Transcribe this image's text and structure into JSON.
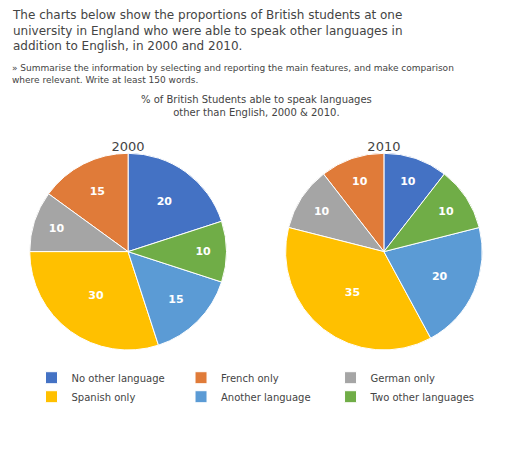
{
  "chart_data": {
    "type": "pie",
    "title": "The charts below show the proportions of British students at one\nuniversity in England who were able to speak other languages in\naddition to English, in 2000 and 2010.",
    "subtitle": "» Summarise the information by selecting and reporting the main features, and make comparison\nwhere relevant. Write at least 150 words.",
    "annotations": [
      "% of British Students able to speak languages\nother than English, 2000 & 2010."
    ],
    "categories": [
      "No other language",
      "French only",
      "German only",
      "Spanish only",
      "Another language",
      "Two other languages"
    ],
    "colors": [
      "#4472C4",
      "#E07B39",
      "#A5A5A5",
      "#FFC000",
      "#5B9BD5",
      "#70AD47"
    ],
    "series": [
      {
        "name": "2000",
        "values": [
          20,
          15,
          10,
          30,
          15,
          10
        ]
      },
      {
        "name": "2010",
        "values": [
          10,
          10,
          10,
          35,
          20,
          10
        ]
      }
    ],
    "data_labels": true,
    "legend": "bottom"
  }
}
